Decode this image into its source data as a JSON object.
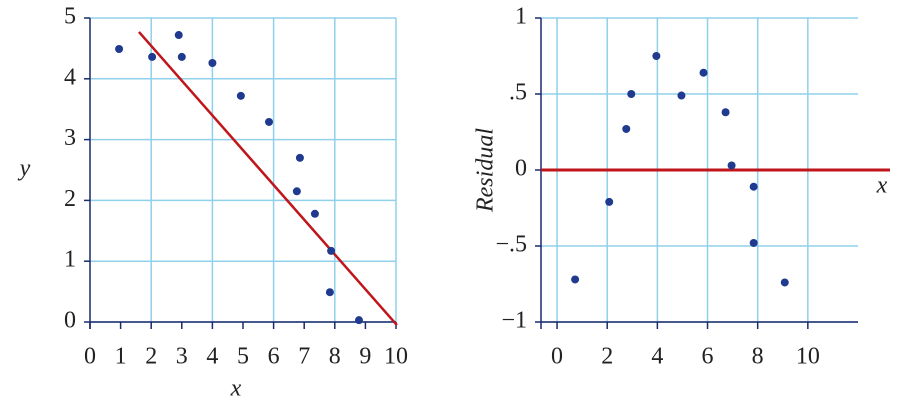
{
  "chart_data": [
    {
      "type": "scatter",
      "xlabel": "x",
      "ylabel": "y",
      "xlim": [
        0,
        10
      ],
      "ylim": [
        0,
        5
      ],
      "xticks": [
        0,
        1,
        2,
        3,
        4,
        5,
        6,
        7,
        8,
        9,
        10
      ],
      "yticks": [
        0,
        1,
        2,
        3,
        4,
        5
      ],
      "grid": true,
      "color": "#1f3a8f",
      "x": [
        0.95,
        2.03,
        2.9,
        3.0,
        4.0,
        4.93,
        5.85,
        6.86,
        6.76,
        7.35,
        7.88,
        7.84,
        8.79
      ],
      "y": [
        4.49,
        4.36,
        4.72,
        4.36,
        4.26,
        3.72,
        3.29,
        2.7,
        2.15,
        1.78,
        1.17,
        0.49,
        0.03
      ],
      "fit_line": {
        "x": [
          1.6,
          10.03
        ],
        "y": [
          4.77,
          -0.05
        ],
        "color": "#c0151b"
      }
    },
    {
      "type": "scatter",
      "xlabel": "x",
      "ylabel": "Residual",
      "xlim": [
        -0.64,
        12
      ],
      "ylim": [
        -1,
        1
      ],
      "xticks": [
        0,
        2,
        4,
        6,
        8,
        10
      ],
      "yticks": [
        {
          "value": -1,
          "label": "−1"
        },
        {
          "value": -0.5,
          "label": "−.5"
        },
        0,
        {
          "value": 0.5,
          "label": ".5"
        },
        1
      ],
      "grid": true,
      "color": "#1f3a8f",
      "hline": 0,
      "hline_color": "#c0151b",
      "x": [
        0.72,
        2.08,
        2.76,
        2.96,
        3.96,
        4.96,
        5.84,
        6.72,
        6.96,
        7.84,
        7.84,
        9.08
      ],
      "y": [
        -0.72,
        -0.21,
        0.27,
        0.5,
        0.75,
        0.49,
        0.64,
        0.38,
        0.03,
        -0.11,
        -0.48,
        -0.74
      ]
    }
  ]
}
